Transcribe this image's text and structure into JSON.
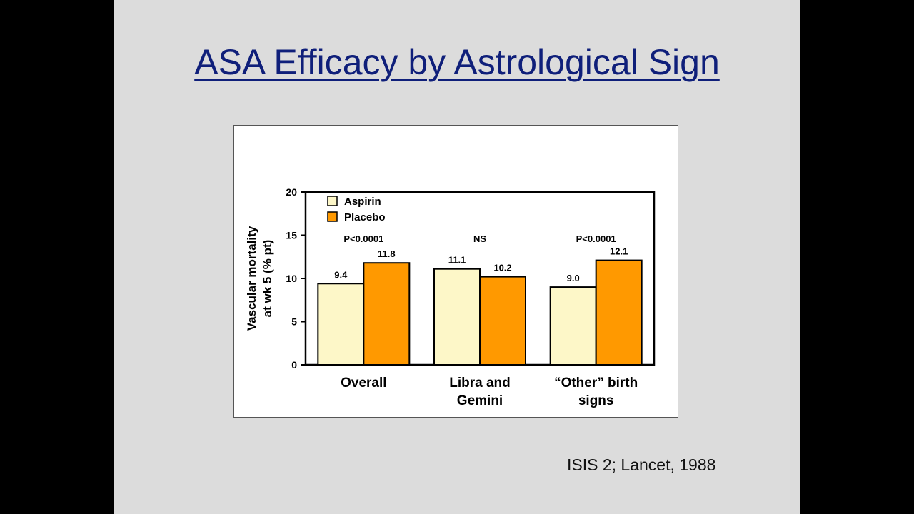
{
  "slide": {
    "title": "ASA Efficacy by Astrological Sign",
    "citation": "ISIS 2; Lancet, 1988"
  },
  "colors": {
    "aspirin": "#fdf7c8",
    "placebo": "#ff9900",
    "title": "#0f1f7a"
  },
  "chart_data": {
    "type": "bar",
    "title": "",
    "ylabel_lines": [
      "Vascular mortality",
      "at wk 5 (% pt)"
    ],
    "xlabel": "",
    "ylim": [
      0,
      20
    ],
    "yticks": [
      0,
      5,
      10,
      15,
      20
    ],
    "grid": false,
    "legend_position": "top-left",
    "categories": [
      [
        "Overall"
      ],
      [
        "Libra and",
        "Gemini"
      ],
      [
        "“Other” birth",
        "signs"
      ]
    ],
    "series": [
      {
        "name": "Aspirin",
        "values": [
          9.4,
          11.1,
          9.0
        ],
        "labels": [
          "9.4",
          "11.1",
          "9.0"
        ]
      },
      {
        "name": "Placebo",
        "values": [
          11.8,
          10.2,
          12.1
        ],
        "labels": [
          "11.8",
          "10.2",
          "12.1"
        ]
      }
    ],
    "annotations": [
      "P<0.0001",
      "NS",
      "P<0.0001"
    ]
  }
}
